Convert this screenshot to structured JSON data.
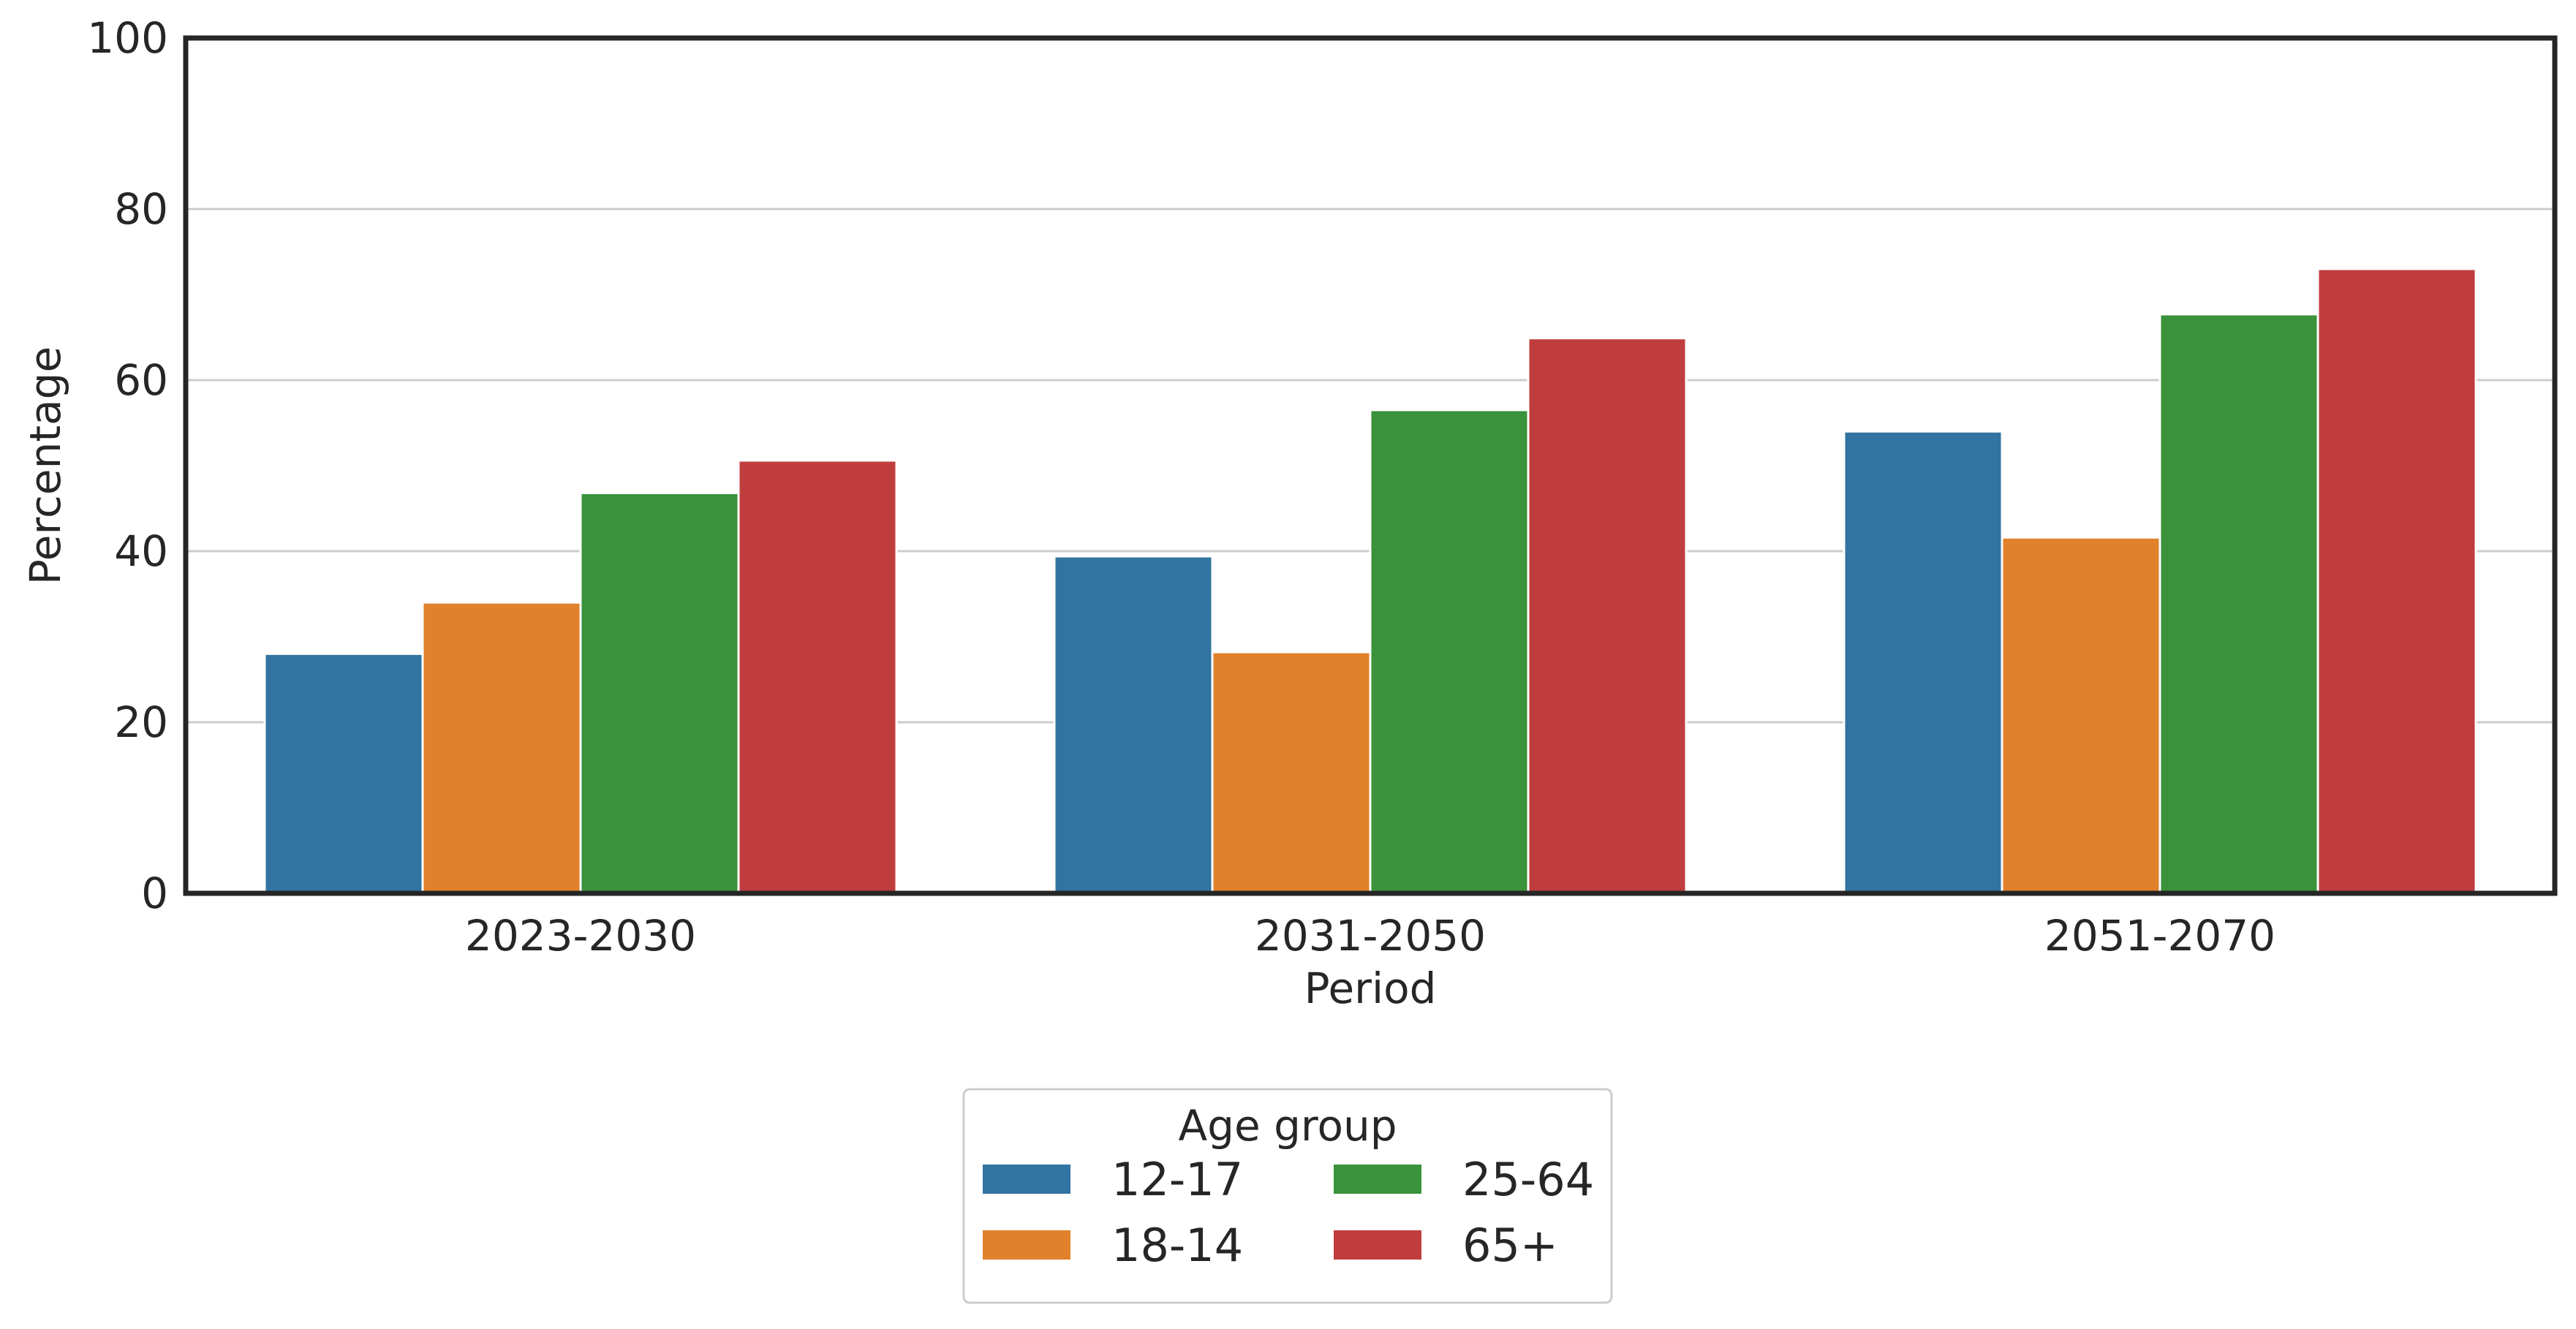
{
  "chart_data": {
    "type": "bar",
    "title": "",
    "xlabel": "Period",
    "ylabel": "Percentage",
    "ylim": [
      0,
      100
    ],
    "yticks": [
      0,
      20,
      40,
      60,
      80,
      100
    ],
    "grid": "horizontal",
    "categories": [
      "2023-2030",
      "2031-2050",
      "2051-2070"
    ],
    "series": [
      {
        "name": "12-17",
        "color": "#3274a1",
        "values": [
          28.0,
          39.4,
          54.0
        ]
      },
      {
        "name": "18-14",
        "color": "#e1812c",
        "values": [
          34.0,
          28.2,
          41.6
        ]
      },
      {
        "name": "25-64",
        "color": "#3a923a",
        "values": [
          46.8,
          56.5,
          67.7
        ]
      },
      {
        "name": "65+",
        "color": "#c03d3e",
        "values": [
          50.6,
          64.9,
          73.0
        ]
      }
    ],
    "legend": {
      "title": "Age group",
      "position": "bottom-center",
      "columns": 2
    }
  }
}
